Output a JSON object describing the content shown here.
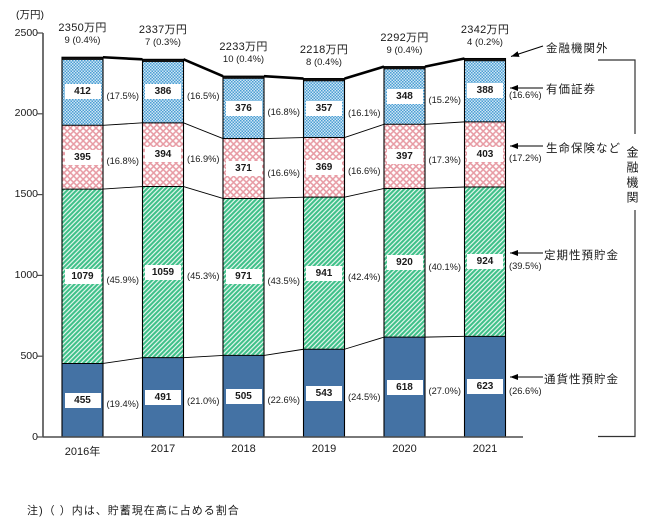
{
  "chart_data": {
    "type": "stacked-bar",
    "unit_label": "(万円)",
    "ylim": [
      0,
      2500
    ],
    "yticks": [
      0,
      500,
      1000,
      1500,
      2000,
      2500
    ],
    "categories": [
      "2016年",
      "2017",
      "2018",
      "2019",
      "2020",
      "2021"
    ],
    "totals": [
      "2350万円",
      "2337万円",
      "2233万円",
      "2218万円",
      "2292万円",
      "2342万円"
    ],
    "top_values": [
      "9 (0.4%)",
      "7 (0.3%)",
      "10 (0.4%)",
      "8 (0.4%)",
      "9 (0.4%)",
      "4 (0.2%)"
    ],
    "series": [
      {
        "name": "通貨性預貯金",
        "style": "solid-blue",
        "values": [
          455,
          491,
          505,
          543,
          618,
          623
        ],
        "pcts": [
          "(19.4%)",
          "(21.0%)",
          "(22.6%)",
          "(24.5%)",
          "(27.0%)",
          "(26.6%)"
        ]
      },
      {
        "name": "定期性預貯金",
        "style": "green-hatch",
        "values": [
          1079,
          1059,
          971,
          941,
          920,
          924
        ],
        "pcts": [
          "(45.9%)",
          "(45.3%)",
          "(43.5%)",
          "(42.4%)",
          "(40.1%)",
          "(39.5%)"
        ]
      },
      {
        "name": "生命保険など",
        "style": "pink-cross",
        "values": [
          395,
          394,
          371,
          369,
          397,
          403
        ],
        "pcts": [
          "(16.8%)",
          "(16.9%)",
          "(16.6%)",
          "(16.6%)",
          "(17.3%)",
          "(17.2%)"
        ]
      },
      {
        "name": "有価証券",
        "style": "blue-check",
        "values": [
          412,
          386,
          376,
          357,
          348,
          388
        ],
        "pcts": [
          "(17.5%)",
          "(16.5%)",
          "(16.8%)",
          "(16.1%)",
          "(15.2%)",
          "(16.6%)"
        ]
      },
      {
        "name": "金融機関外",
        "style": "black",
        "values": [
          9,
          7,
          10,
          8,
          9,
          4
        ],
        "pcts": []
      }
    ],
    "annotations": [
      {
        "label": "金融機関外"
      },
      {
        "label": "有価証券"
      },
      {
        "label": "生命保険など"
      },
      {
        "label": "定期性預貯金"
      },
      {
        "label": "通貨性預貯金"
      }
    ],
    "group_label": "金融機関",
    "note": "注)（ ）内は、貯蓄現在高に占める割合",
    "colors": {
      "bar_blue": "#4472a4",
      "green": "#3ec089",
      "green_bg": "#eefaf3",
      "pink": "#e79aa3",
      "check_blue": "#4a9ed3",
      "check_blue_light": "#cfe5f4",
      "black": "#111111",
      "axis": "#4d4d4d",
      "line": "#000000"
    }
  }
}
